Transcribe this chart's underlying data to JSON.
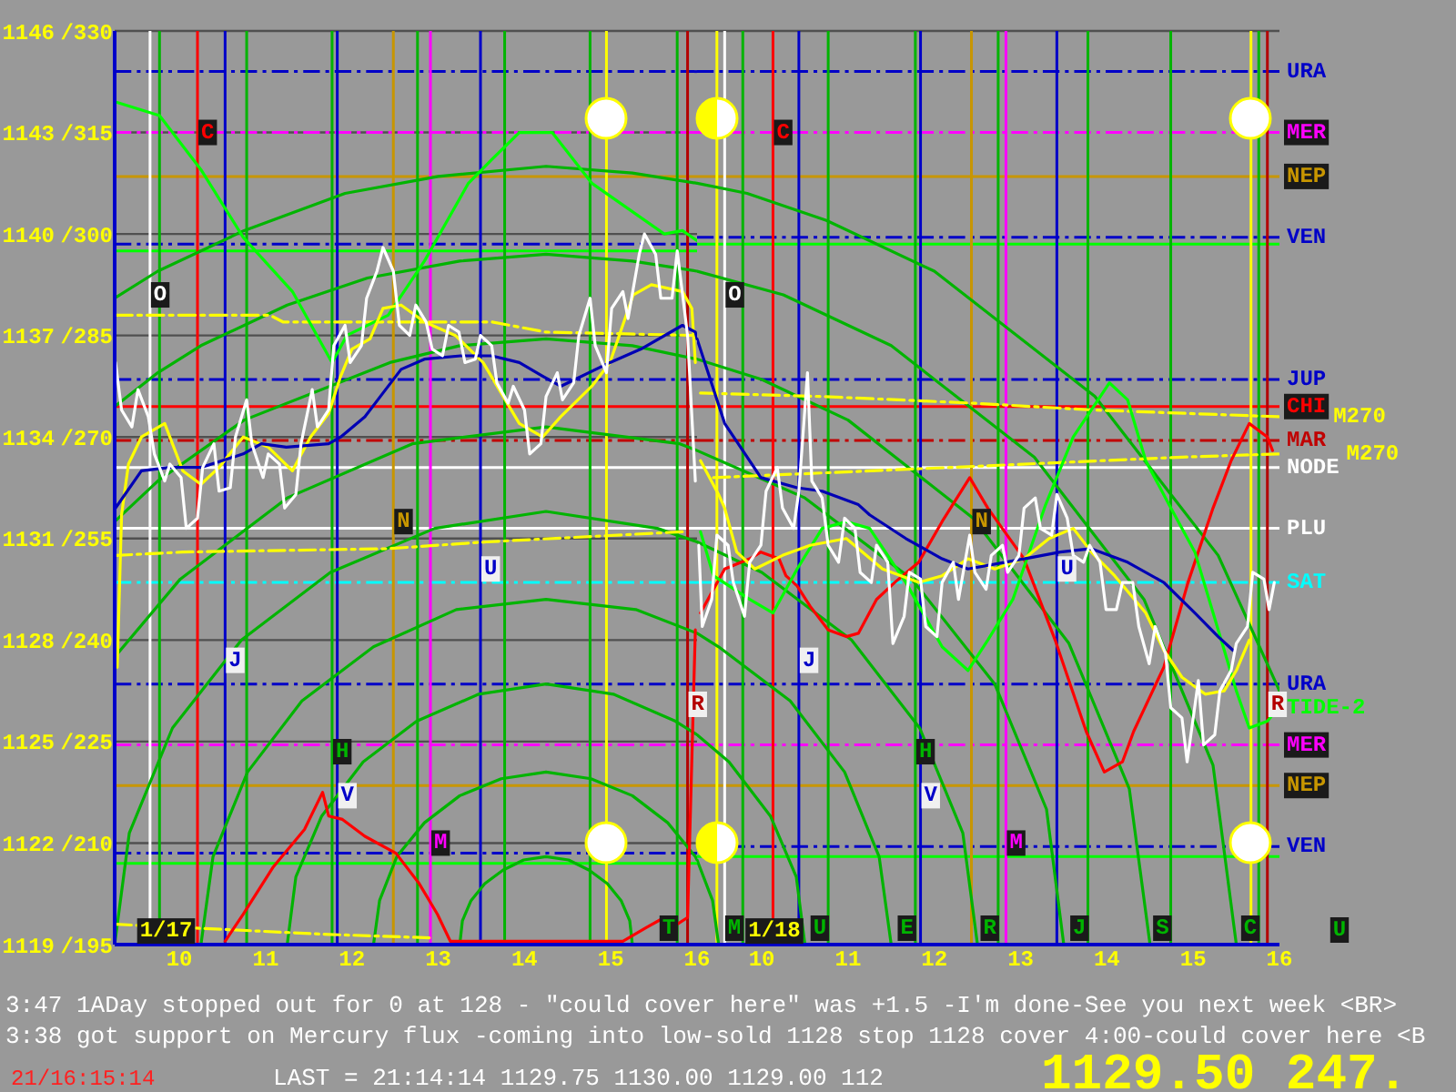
{
  "chart_data": [
    {
      "type": "line",
      "xlim": [
        9.25,
        16
      ],
      "xticks": [
        10,
        11,
        12,
        13,
        14,
        15,
        16
      ],
      "ylim": [
        1119,
        1146
      ],
      "yticks": [
        1119,
        1122,
        1125,
        1128,
        1131,
        1134,
        1137,
        1140,
        1143,
        1146
      ],
      "y2lim": [
        195,
        330
      ],
      "y2ticks": [
        {
          "value": 195,
          "label": "/195"
        },
        {
          "value": 210,
          "label": "/210"
        },
        {
          "value": 225,
          "label": "/225"
        },
        {
          "value": 240,
          "label": "/240"
        },
        {
          "value": 255,
          "label": "/255"
        },
        {
          "value": 270,
          "label": "/270"
        },
        {
          "value": 285,
          "label": "/285"
        },
        {
          "value": 300,
          "label": "/300"
        },
        {
          "value": 315,
          "label": "/315"
        },
        {
          "value": 330,
          "label": "/330"
        }
      ],
      "grid": "y",
      "series": [
        {
          "color": "#00b400",
          "x": [
            13.25,
            13.28,
            13.38,
            13.54,
            13.75,
            13.99,
            14.25,
            14.51,
            14.75,
            14.96,
            15.12,
            15.22,
            15.25
          ],
          "values": [
            1119,
            1119.7,
            1120.3,
            1120.8,
            1121.2,
            1121.5,
            1121.6,
            1121.5,
            1121.2,
            1120.8,
            1120.3,
            1119.7,
            1119
          ]
        },
        {
          "color": "#00b400",
          "x": [
            12.25,
            12.32,
            12.52,
            12.84,
            13.25,
            13.73,
            14.25,
            14.77,
            15.25,
            15.66,
            15.98,
            16
          ],
          "values": [
            1119,
            1120.3,
            1121.6,
            1122.6,
            1123.4,
            1123.9,
            1124.1,
            1123.9,
            1123.4,
            1122.6,
            1121.6,
            1121.5
          ]
        },
        {
          "color": "#00b400",
          "x": [
            11.25,
            11.35,
            11.65,
            12.13,
            12.75,
            13.47,
            14.25,
            15.03,
            15.75,
            16
          ],
          "values": [
            1119,
            1121,
            1122.8,
            1124.4,
            1125.6,
            1126.4,
            1126.7,
            1126.4,
            1125.6,
            1125.2
          ]
        },
        {
          "color": "#00b400",
          "x": [
            10.25,
            10.39,
            10.79,
            11.42,
            12.25,
            13.21,
            14.25,
            15.29,
            16
          ],
          "values": [
            1119,
            1121.6,
            1124.1,
            1126.2,
            1127.8,
            1128.9,
            1129.2,
            1128.9,
            1128.2
          ]
        },
        {
          "color": "#00b400",
          "x": [
            9.25,
            9.42,
            9.92,
            10.72,
            11.75,
            12.96,
            14.25,
            15.54,
            16
          ],
          "values": [
            1119,
            1122.3,
            1125.4,
            1128,
            1130,
            1131.3,
            1131.8,
            1131.3,
            1130.9
          ]
        },
        {
          "color": "#00b400",
          "x": [
            9.25,
            10.01,
            11.25,
            12.7,
            14.25,
            15.8,
            16
          ],
          "values": [
            1127.5,
            1129.8,
            1132.2,
            1133.8,
            1134.3,
            1133.8,
            1133.6
          ]
        },
        {
          "color": "#00b400",
          "x": [
            9.25,
            9.75,
            10.75,
            12.44,
            13.25,
            14.25,
            15.25,
            16
          ],
          "values": [
            1131.5,
            1132.7,
            1134.5,
            1136.2,
            1136.7,
            1136.9,
            1136.7,
            1136.3
          ]
        },
        {
          "color": "#00b400",
          "x": [
            9.25,
            9.75,
            10.25,
            11.25,
            12.18,
            13.25,
            14.25,
            15.25,
            16
          ],
          "values": [
            1134.9,
            1135.9,
            1136.7,
            1137.9,
            1138.7,
            1139.2,
            1139.4,
            1139.2,
            1138.9
          ]
        },
        {
          "color": "#00b400",
          "x": [
            9.25,
            9.75,
            10.75,
            11.92,
            13,
            14.25,
            15.25,
            16
          ],
          "values": [
            1138.1,
            1138.9,
            1140.1,
            1141.2,
            1141.7,
            1142,
            1141.8,
            1141.5
          ]
        },
        {
          "color": "#ffff00",
          "line_style": "dashed",
          "x": [
            9.26,
            11.73,
            12.9
          ],
          "values": [
            1119.6,
            1119.3,
            1119.2
          ]
        },
        {
          "color": "#ffff00",
          "line_style": "dashed",
          "x": [
            9.26,
            11.05,
            11.2,
            13.62,
            14.25,
            16
          ],
          "values": [
            1137.6,
            1137.6,
            1137.4,
            1137.4,
            1137.1,
            1137
          ]
        },
        {
          "color": "#ffff00",
          "line_style": "dashed",
          "x": [
            9.26,
            10.04,
            12.42,
            13.56,
            15.83
          ],
          "values": [
            1130.5,
            1130.6,
            1130.7,
            1130.9,
            1131.2
          ]
        },
        {
          "color": "#ff0000",
          "x": [
            10.53,
            10.74,
            11.09,
            11.45,
            11.66,
            11.73,
            11.89,
            12.15,
            12.51,
            12.78,
            12.99,
            13.14,
            15.14,
            15.41,
            15.62,
            15.77,
            15.89,
            15.98
          ],
          "values": [
            1119.1,
            1119.9,
            1121.3,
            1122.4,
            1123.5,
            1122.8,
            1122.7,
            1122.2,
            1121.7,
            1120.8,
            1119.9,
            1119.1,
            1119.1,
            1119.5,
            1119.8,
            1119.6,
            1119.8,
            1128.3
          ]
        },
        {
          "color": "#00ff00",
          "x": [
            9.26,
            9.77,
            10.25,
            10.74,
            11.31,
            11.77,
            11.94,
            12.42,
            12.84,
            13.35,
            13.62,
            13.94,
            14.32,
            14.78,
            15.62,
            15.83,
            16
          ],
          "values": [
            1143.9,
            1143.5,
            1141.9,
            1139.9,
            1138.3,
            1136.2,
            1137,
            1137.6,
            1139.2,
            1141.5,
            1142.2,
            1143,
            1143,
            1141.5,
            1140,
            1140.1,
            1139.8
          ]
        },
        {
          "color": "#ffff00",
          "x": [
            9.28,
            9.33,
            9.41,
            9.56,
            9.83,
            10.04,
            10.25,
            10.46,
            10.74,
            11.03,
            11.31,
            11.52,
            11.73,
            11.87,
            12,
            12.21,
            12.36,
            12.57,
            12.84,
            13.2,
            13.52,
            13.94,
            14.21,
            14.42,
            14.78,
            14.99,
            15.26,
            15.47,
            15.83,
            15.94,
            15.98
          ],
          "values": [
            1127.2,
            1131.7,
            1133.2,
            1134,
            1134.4,
            1133,
            1132.6,
            1133.1,
            1134,
            1133.7,
            1133,
            1134,
            1134.7,
            1135.8,
            1136.6,
            1136.9,
            1137.8,
            1137.9,
            1137.4,
            1137,
            1136.2,
            1134.4,
            1134,
            1134.6,
            1135.5,
            1136.2,
            1138.2,
            1138.5,
            1138.3,
            1137.8,
            1136.2
          ]
        },
        {
          "color": "#0000b4",
          "x": [
            9.26,
            9.56,
            9.89,
            10.25,
            10.74,
            10.95,
            11.24,
            11.73,
            11.87,
            12.15,
            12.36,
            12.57,
            12.84,
            13.26,
            13.62,
            13.94,
            14.21,
            14.42,
            14.99,
            15.35,
            15.83,
            15.98,
            16
          ],
          "values": [
            1131.9,
            1133,
            1133.1,
            1133.1,
            1133.5,
            1133.8,
            1133.7,
            1133.8,
            1134,
            1134.6,
            1135.3,
            1136,
            1136.3,
            1136.4,
            1136.4,
            1136.2,
            1135.8,
            1135.5,
            1136.2,
            1136.6,
            1137.3,
            1137.1,
            1136.9
          ]
        },
        {
          "color": "#ffffff",
          "x": [
            9.26,
            9.33,
            9.45,
            9.52,
            9.64,
            9.71,
            9.83,
            9.89,
            10.02,
            10.08,
            10.21,
            10.27,
            10.4,
            10.46,
            10.59,
            10.65,
            10.78,
            10.84,
            10.97,
            11.03,
            11.16,
            11.22,
            11.35,
            11.41,
            11.54,
            11.6,
            11.73,
            11.79,
            11.92,
            11.98,
            12.11,
            12.17,
            12.29,
            12.36,
            12.48,
            12.55,
            12.67,
            12.74,
            12.86,
            12.93,
            13.05,
            13.12,
            13.24,
            13.31,
            13.43,
            13.49,
            13.62,
            13.68,
            13.81,
            13.87,
            14,
            14.06,
            14.19,
            14.25,
            14.38,
            14.44,
            14.57,
            14.63,
            14.76,
            14.82,
            14.95,
            15.01,
            15.14,
            15.2,
            15.33,
            15.39,
            15.52,
            15.58,
            15.71,
            15.77,
            15.89,
            15.94,
            15.98
          ],
          "values": [
            1136.2,
            1134.8,
            1134.3,
            1135.4,
            1134.6,
            1133.5,
            1132.7,
            1133.2,
            1132.8,
            1131.3,
            1131.6,
            1133.1,
            1133.8,
            1132.4,
            1132.5,
            1134,
            1135.1,
            1133.8,
            1132.8,
            1133.5,
            1133.2,
            1131.9,
            1132.3,
            1133.8,
            1135.4,
            1134.3,
            1134.8,
            1136.7,
            1137.3,
            1136.2,
            1136.7,
            1138.1,
            1138.9,
            1139.6,
            1138.9,
            1137.3,
            1137,
            1137.9,
            1137.4,
            1136.6,
            1136.4,
            1137.3,
            1137.1,
            1136.2,
            1136.3,
            1137,
            1136.7,
            1135.6,
            1135,
            1135.5,
            1134.8,
            1133.5,
            1133.8,
            1135.2,
            1135.9,
            1135.1,
            1135.6,
            1137,
            1138.1,
            1136.7,
            1135.9,
            1137.8,
            1138.3,
            1137.5,
            1139.4,
            1140,
            1139.4,
            1138.1,
            1138.1,
            1139.5,
            1137,
            1134.6,
            1132.7
          ]
        }
      ],
      "ref_lines": [
        {
          "axis": "y",
          "value": 1144.8,
          "color": "#0000c8",
          "line_style": "dashed"
        },
        {
          "axis": "y",
          "value": 1143,
          "color": "#ff00ff",
          "line_style": "dashed"
        },
        {
          "axis": "y",
          "value": 1141.7,
          "color": "#c89600"
        },
        {
          "axis": "y",
          "value": 1139.7,
          "color": "#0000c8",
          "line_style": "dashed"
        },
        {
          "axis": "y",
          "value": 1139.5,
          "color": "#00ff00"
        },
        {
          "axis": "y",
          "value": 1135.7,
          "color": "#0000c8",
          "line_style": "dashed"
        },
        {
          "axis": "y",
          "value": 1134.9,
          "color": "#ff0000"
        },
        {
          "axis": "y",
          "value": 1133.9,
          "color": "#c00000",
          "line_style": "dashed"
        },
        {
          "axis": "y",
          "value": 1133.1,
          "color": "#ffffff"
        },
        {
          "axis": "y",
          "value": 1131.3,
          "color": "#ffffff"
        },
        {
          "axis": "y",
          "value": 1129.7,
          "color": "#00ffff",
          "line_style": "dashed"
        },
        {
          "axis": "y",
          "value": 1126.7,
          "color": "#0000c8",
          "line_style": "dashed"
        },
        {
          "axis": "y",
          "value": 1124.9,
          "color": "#ff00ff",
          "line_style": "dashed"
        },
        {
          "axis": "y",
          "value": 1123.7,
          "color": "#c89600"
        },
        {
          "axis": "y",
          "value": 1121.7,
          "color": "#0000c8",
          "line_style": "dashed"
        },
        {
          "axis": "y",
          "value": 1121.4,
          "color": "#00ff00"
        },
        {
          "axis": "x",
          "value": 9.66,
          "color": "#ffffff"
        },
        {
          "axis": "x",
          "value": 9.77,
          "color": "#00b400"
        },
        {
          "axis": "x",
          "value": 10.21,
          "color": "#ff0000"
        },
        {
          "axis": "x",
          "value": 10.53,
          "color": "#0000c8"
        },
        {
          "axis": "x",
          "value": 10.78,
          "color": "#00b400"
        },
        {
          "axis": "x",
          "value": 11.77,
          "color": "#00b400"
        },
        {
          "axis": "x",
          "value": 11.83,
          "color": "#0000c8"
        },
        {
          "axis": "x",
          "value": 12.48,
          "color": "#c89600"
        },
        {
          "axis": "x",
          "value": 12.76,
          "color": "#00b400"
        },
        {
          "axis": "x",
          "value": 12.91,
          "color": "#ff00ff"
        },
        {
          "axis": "x",
          "value": 13.49,
          "color": "#0000c8"
        },
        {
          "axis": "x",
          "value": 13.77,
          "color": "#00b400"
        },
        {
          "axis": "x",
          "value": 14.76,
          "color": "#00b400"
        },
        {
          "axis": "x",
          "value": 14.95,
          "color": "#ffff00"
        },
        {
          "axis": "x",
          "value": 15.77,
          "label": "T",
          "color": "#00b400"
        },
        {
          "axis": "x",
          "value": 15.89,
          "color": "#b40000"
        }
      ],
      "annotations": [
        {
          "text": "O",
          "x": 9.66,
          "y": 1138.2
        },
        {
          "text": "C",
          "x": 10.21,
          "y": 1143
        },
        {
          "text": "J",
          "x": 10.53,
          "y": 1127.4
        },
        {
          "text": "H",
          "x": 11.77,
          "y": 1124.7
        },
        {
          "text": "V",
          "x": 11.83,
          "y": 1123.4
        },
        {
          "text": "N",
          "x": 12.48,
          "y": 1131.5
        },
        {
          "text": "M",
          "x": 12.91,
          "y": 1122
        },
        {
          "text": "U",
          "x": 13.49,
          "y": 1130.1
        },
        {
          "text": "R",
          "x": 15.89,
          "y": 1126.1
        },
        {
          "text": "1/17",
          "x": 9.5,
          "y": 1119.4
        },
        "3:47 1ADay stopped out for 0 at 128 - \"could cover here\" was +1.5 -I'm done-See you next week <BR>",
        "3:38 got support on Mercury flux -coming into low-sold 1128 stop 1128 cover 4:00-could cover here <B",
        "21/16:15:14",
        "LAST = 21:14:14 1129.75 1130.00 1129.00 112",
        "1129.50 247."
      ]
    },
    {
      "type": "line",
      "xlim": [
        9.25,
        16
      ],
      "xticks": [
        10,
        11,
        12,
        13,
        14,
        15,
        16
      ],
      "ylim": [
        1119,
        1146
      ],
      "yticks": [
        1119,
        1122,
        1125,
        1128,
        1131,
        1134,
        1137,
        1140,
        1143,
        1146
      ],
      "tick_labels": "x",
      "grid": "y",
      "series": [
        {
          "color": "#00b400",
          "x": [
            9.25,
            9.43,
            9.5
          ],
          "values": [
            1121.5,
            1120.3,
            1119
          ]
        },
        {
          "color": "#00b400",
          "x": [
            9.25,
            9.62,
            10.1,
            10.4,
            10.5
          ],
          "values": [
            1125.2,
            1124.4,
            1122.8,
            1121,
            1119
          ]
        },
        {
          "color": "#00b400",
          "x": [
            9.25,
            9.5,
            10.33,
            10.96,
            11.36,
            11.5
          ],
          "values": [
            1128.2,
            1127.8,
            1126.2,
            1124.1,
            1121.6,
            1119
          ]
        },
        {
          "color": "#00b400",
          "x": [
            9.25,
            10,
            11.04,
            11.83,
            12.33,
            12.5
          ],
          "values": [
            1130.9,
            1130,
            1128,
            1125.4,
            1122.3,
            1119
          ]
        },
        {
          "color": "#00b400",
          "x": [
            9.25,
            10.5,
            11.74,
            12.7,
            13.3,
            13.5
          ],
          "values": [
            1133.6,
            1132.2,
            1129.8,
            1126.7,
            1123,
            1119
          ]
        },
        {
          "color": "#00b400",
          "x": [
            9.25,
            10,
            11,
            12.45,
            13.56,
            14.26,
            14.5
          ],
          "values": [
            1136.3,
            1135.7,
            1134.5,
            1131.6,
            1127.9,
            1123.6,
            1119
          ]
        },
        {
          "color": "#00b400",
          "x": [
            9.25,
            10.25,
            11.5,
            13.16,
            14.43,
            15.23,
            15.5
          ],
          "values": [
            1138.9,
            1138.2,
            1136.7,
            1133.4,
            1129.2,
            1124.3,
            1119
          ]
        },
        {
          "color": "#00b400",
          "x": [
            9.25,
            9.83,
            10.75,
            12,
            13.86,
            15.29,
            16
          ],
          "values": [
            1141.5,
            1141.2,
            1140.4,
            1138.9,
            1135.2,
            1130.5,
            1126.5
          ]
        },
        {
          "name": "M270",
          "color": "#ffff00",
          "line_style": "dashed",
          "x": [
            9.29,
            10.66,
            12.45,
            13.82,
            15.99
          ],
          "values": [
            1135.3,
            1135.2,
            1135,
            1134.8,
            1134.6
          ]
        },
        {
          "name": "M270",
          "color": "#ffff00",
          "line_style": "dashed",
          "x": [
            9.44,
            12.18,
            14.81,
            15.99
          ],
          "values": [
            1132.8,
            1133.1,
            1133.4,
            1133.5
          ]
        },
        {
          "color": "#ff0000",
          "x": [
            9.29,
            9.57,
            9.86,
            9.99,
            10.2,
            10.28,
            10.41,
            10.56,
            10.77,
            10.98,
            11.12,
            11.33,
            11.54,
            11.82,
            12.09,
            12.41,
            12.62,
            13.04,
            13.4,
            13.76,
            13.97,
            14.18,
            14.31,
            14.66,
            14.94,
            15.23,
            15.44,
            15.65,
            15.86,
            15.92
          ],
          "values": [
            1128.8,
            1130.1,
            1130.4,
            1130.6,
            1130.4,
            1129.9,
            1129.6,
            1129,
            1128.3,
            1128.1,
            1128.2,
            1129.2,
            1129.7,
            1130.3,
            1131.5,
            1132.8,
            1131.9,
            1130.4,
            1128,
            1125.3,
            1124.1,
            1124.4,
            1125.3,
            1127.2,
            1129.7,
            1131.9,
            1133.3,
            1134.4,
            1134,
            1133.6
          ]
        },
        {
          "name": "TIDE-2",
          "color": "#00ff00",
          "x": [
            9.29,
            9.44,
            9.86,
            10.13,
            10.41,
            10.7,
            10.98,
            11.25,
            11.67,
            12.09,
            12.39,
            12.62,
            12.91,
            13.29,
            13.61,
            14.03,
            14.24,
            14.45,
            14.72,
            15.02,
            15.29,
            15.5,
            15.65,
            15.86,
            15.99
          ],
          "values": [
            1131.2,
            1129.9,
            1129.2,
            1128.8,
            1130.1,
            1131.3,
            1131.5,
            1131.3,
            1129.7,
            1127.8,
            1127.1,
            1128,
            1129.2,
            1132,
            1134,
            1135.6,
            1135.1,
            1133.3,
            1132,
            1130.6,
            1128.3,
            1126.5,
            1125.4,
            1125.6,
            1126
          ]
        },
        {
          "color": "#ffff00",
          "x": [
            9.29,
            9.5,
            9.57,
            9.71,
            9.92,
            10.24,
            10.56,
            10.98,
            11.4,
            11.82,
            12.09,
            12.39,
            12.7,
            13.04,
            13.33,
            13.61,
            13.82,
            14.09,
            14.45,
            14.66,
            14.87,
            15.14,
            15.36,
            15.5,
            15.65
          ],
          "values": [
            1133.3,
            1132.3,
            1131.9,
            1130.6,
            1130.1,
            1130.5,
            1130.8,
            1131,
            1130.1,
            1129.7,
            1129.9,
            1130.4,
            1130.1,
            1130.4,
            1131,
            1131.3,
            1130.6,
            1129.9,
            1128.8,
            1127.7,
            1126.9,
            1126.4,
            1126.5,
            1127.1,
            1128
          ]
        },
        {
          "color": "#0000b4",
          "x": [
            9.25,
            9.57,
            9.99,
            10.41,
            10.7,
            11.12,
            11.25,
            11.67,
            12.09,
            12.39,
            13.04,
            13.46,
            13.82,
            14.24,
            14.66,
            15.02,
            15.29,
            15.46
          ],
          "values": [
            1136.9,
            1134.4,
            1132.8,
            1132.5,
            1132.4,
            1132,
            1131.7,
            1131,
            1130.4,
            1130.1,
            1130.4,
            1130.6,
            1130.7,
            1130.3,
            1129.7,
            1128.8,
            1128.1,
            1127.7
          ]
        },
        {
          "color": "#ffffff",
          "x": [
            9.27,
            9.31,
            9.42,
            9.48,
            9.61,
            9.67,
            9.8,
            9.86,
            9.99,
            10.05,
            10.18,
            10.24,
            10.37,
            10.43,
            10.53,
            10.58,
            10.7,
            10.77,
            10.89,
            10.96,
            11.08,
            11.14,
            11.27,
            11.33,
            11.46,
            11.52,
            11.65,
            11.71,
            11.84,
            11.9,
            12.03,
            12.09,
            12.22,
            12.28,
            12.41,
            12.47,
            12.6,
            12.66,
            12.79,
            12.85,
            12.98,
            13.04,
            13.17,
            13.23,
            13.36,
            13.42,
            13.54,
            13.61,
            13.73,
            13.8,
            13.92,
            13.99,
            14.11,
            14.18,
            14.3,
            14.37,
            14.49,
            14.56,
            14.68,
            14.74,
            14.87,
            14.93,
            15.06,
            15.12,
            15.25,
            15.31,
            15.44,
            15.5,
            15.63,
            15.69,
            15.82,
            15.88,
            15.94
          ],
          "values": [
            1130.8,
            1128.4,
            1129.2,
            1131.1,
            1130.8,
            1129.7,
            1128.7,
            1130.3,
            1130.8,
            1132.4,
            1133.1,
            1131.9,
            1131.3,
            1132.4,
            1135.9,
            1132.7,
            1132.2,
            1130.8,
            1130.3,
            1131.6,
            1131.3,
            1130,
            1129.7,
            1130.8,
            1130.3,
            1127.9,
            1128.7,
            1130,
            1129.8,
            1128.4,
            1128.1,
            1129.7,
            1130.3,
            1129.2,
            1131.1,
            1130,
            1129.5,
            1130.5,
            1130.8,
            1130,
            1130.5,
            1131.9,
            1132.2,
            1131.3,
            1131.1,
            1132.3,
            1131.6,
            1130.5,
            1130.3,
            1130.8,
            1130.3,
            1128.9,
            1128.9,
            1129.7,
            1129.7,
            1128.4,
            1127.3,
            1128.4,
            1127.6,
            1126,
            1125.7,
            1124.4,
            1126.8,
            1124.9,
            1125.2,
            1126.5,
            1127.1,
            1127.9,
            1128.4,
            1130,
            1129.8,
            1128.9,
            1129.7
          ]
        }
      ],
      "ref_lines": [
        {
          "axis": "y",
          "value": 1144.8,
          "label": "URA",
          "color": "#0000c8",
          "line_style": "dashed"
        },
        {
          "axis": "y",
          "value": 1143,
          "label": "MER",
          "color": "#ff00ff",
          "line_style": "dashed"
        },
        {
          "axis": "y",
          "value": 1141.7,
          "label": "NEP",
          "color": "#c89600"
        },
        {
          "axis": "y",
          "value": 1139.9,
          "label": "VEN",
          "color": "#0000c8",
          "line_style": "dashed"
        },
        {
          "axis": "y",
          "value": 1139.7,
          "color": "#00ff00"
        },
        {
          "axis": "y",
          "value": 1135.7,
          "label": "JUP",
          "color": "#0000c8",
          "line_style": "dashed"
        },
        {
          "axis": "y",
          "value": 1134.9,
          "label": "CHI",
          "color": "#ff0000"
        },
        {
          "axis": "y",
          "value": 1133.9,
          "label": "MAR",
          "color": "#c00000",
          "line_style": "dashed"
        },
        {
          "axis": "y",
          "value": 1133.1,
          "label": "NODE",
          "color": "#ffffff"
        },
        {
          "axis": "y",
          "value": 1131.3,
          "label": "PLU",
          "color": "#ffffff"
        },
        {
          "axis": "y",
          "value": 1129.7,
          "label": "SAT",
          "color": "#00ffff",
          "line_style": "dashed"
        },
        {
          "axis": "y",
          "value": 1126.7,
          "label": "URA",
          "color": "#0000c8",
          "line_style": "dashed"
        },
        {
          "axis": "y",
          "value": 1124.9,
          "label": "MER",
          "color": "#ff00ff",
          "line_style": "dashed"
        },
        {
          "axis": "y",
          "value": 1123.7,
          "label": "NEP",
          "color": "#c89600"
        },
        {
          "axis": "y",
          "value": 1121.9,
          "label": "VEN",
          "color": "#0000c8",
          "line_style": "dashed"
        },
        {
          "axis": "y",
          "value": 1121.6,
          "color": "#00ff00"
        },
        {
          "axis": "x",
          "value": 9.48,
          "color": "#ffff00"
        },
        {
          "axis": "x",
          "value": 9.57,
          "color": "#ffffff"
        },
        {
          "axis": "x",
          "value": 9.78,
          "label": "M",
          "color": "#00b400"
        },
        {
          "axis": "x",
          "value": 10.13,
          "color": "#ff0000"
        },
        {
          "axis": "x",
          "value": 10.43,
          "color": "#0000c8"
        },
        {
          "axis": "x",
          "value": 10.77,
          "label": "U",
          "color": "#00b400"
        },
        {
          "axis": "x",
          "value": 11.78,
          "label": "E",
          "color": "#00b400"
        },
        {
          "axis": "x",
          "value": 11.84,
          "color": "#0000c8"
        },
        {
          "axis": "x",
          "value": 12.43,
          "color": "#c89600"
        },
        {
          "axis": "x",
          "value": 12.74,
          "label": "R",
          "color": "#00b400"
        },
        {
          "axis": "x",
          "value": 12.83,
          "color": "#ff00ff"
        },
        {
          "axis": "x",
          "value": 13.42,
          "color": "#0000c8"
        },
        {
          "axis": "x",
          "value": 13.78,
          "label": "J",
          "color": "#00b400"
        },
        {
          "axis": "x",
          "value": 14.74,
          "label": "S",
          "color": "#00b400"
        },
        {
          "axis": "x",
          "value": 15.67,
          "color": "#ffff00"
        },
        {
          "axis": "x",
          "value": 15.76,
          "label": "C",
          "color": "#00b400"
        },
        {
          "axis": "x",
          "value": 15.86,
          "color": "#b40000"
        }
      ],
      "annotations": [
        {
          "text": "O",
          "x": 9.57,
          "y": 1138.2
        },
        {
          "text": "C",
          "x": 10.13,
          "y": 1143
        },
        {
          "text": "J",
          "x": 10.43,
          "y": 1127.4
        },
        {
          "text": "H",
          "x": 11.78,
          "y": 1124.7
        },
        {
          "text": "V",
          "x": 11.84,
          "y": 1123.4
        },
        {
          "text": "N",
          "x": 12.43,
          "y": 1131.5
        },
        {
          "text": "M",
          "x": 12.83,
          "y": 1122
        },
        {
          "text": "U",
          "x": 13.42,
          "y": 1130.1
        },
        {
          "text": "R",
          "x": 15.86,
          "y": 1126.1
        },
        {
          "text": "1/18",
          "x": 9.8,
          "y": 1119.4
        },
        "U"
      ]
    }
  ]
}
